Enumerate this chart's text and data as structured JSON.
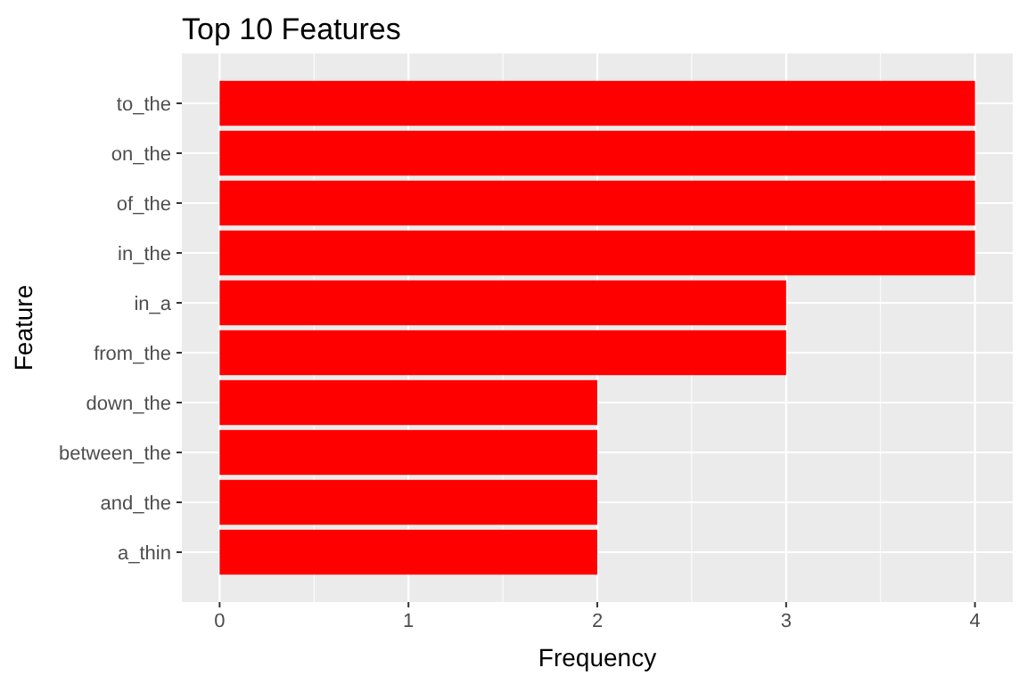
{
  "chart_data": {
    "type": "bar",
    "title": "Top 10 Features",
    "xlabel": "Frequency",
    "ylabel": "Feature",
    "orientation": "horizontal",
    "categories": [
      "to_the",
      "on_the",
      "of_the",
      "in_the",
      "in_a",
      "from_the",
      "down_the",
      "between_the",
      "and_the",
      "a_thin"
    ],
    "values": [
      4,
      4,
      4,
      4,
      3,
      3,
      2,
      2,
      2,
      2
    ],
    "color": "#ff0000",
    "xlim": [
      -0.2,
      4.2
    ],
    "xticks": [
      0,
      1,
      2,
      3,
      4
    ],
    "grid": true
  }
}
